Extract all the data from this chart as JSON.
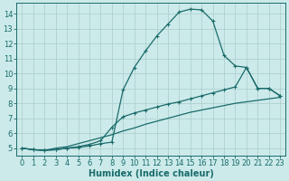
{
  "bg_color": "#cceaea",
  "grid_color": "#b0d0d0",
  "line_color": "#1a6b6b",
  "xlabel": "Humidex (Indice chaleur)",
  "xlabel_fontsize": 7,
  "tick_fontsize": 6,
  "xlim": [
    -0.5,
    23.5
  ],
  "ylim": [
    4.5,
    14.7
  ],
  "yticks": [
    5,
    6,
    7,
    8,
    9,
    10,
    11,
    12,
    13,
    14
  ],
  "xticks": [
    0,
    1,
    2,
    3,
    4,
    5,
    6,
    7,
    8,
    9,
    10,
    11,
    12,
    13,
    14,
    15,
    16,
    17,
    18,
    19,
    20,
    21,
    22,
    23
  ],
  "line1_x": [
    0,
    1,
    2,
    3,
    4,
    5,
    6,
    7,
    8,
    9,
    10,
    11,
    12,
    13,
    14,
    15,
    16,
    17,
    18,
    19,
    20,
    21,
    22,
    23
  ],
  "line1_y": [
    5.0,
    4.9,
    4.85,
    4.9,
    5.0,
    5.05,
    5.15,
    5.3,
    5.4,
    8.9,
    10.4,
    11.5,
    12.5,
    13.3,
    14.1,
    14.3,
    14.25,
    13.5,
    11.2,
    10.5,
    10.4,
    9.0,
    9.0,
    8.5
  ],
  "line2_x": [
    0,
    1,
    2,
    3,
    4,
    5,
    6,
    7,
    8,
    9,
    10,
    11,
    12,
    13,
    14,
    15,
    16,
    17,
    18,
    19,
    20,
    21,
    22,
    23
  ],
  "line2_y": [
    5.0,
    4.9,
    4.85,
    4.9,
    5.0,
    5.1,
    5.25,
    5.5,
    6.4,
    7.1,
    7.35,
    7.55,
    7.75,
    7.95,
    8.1,
    8.3,
    8.5,
    8.7,
    8.9,
    9.1,
    10.4,
    9.0,
    9.0,
    8.5
  ],
  "line3_x": [
    0,
    1,
    2,
    3,
    4,
    5,
    6,
    7,
    8,
    9,
    10,
    11,
    12,
    13,
    14,
    15,
    16,
    17,
    18,
    19,
    20,
    21,
    22,
    23
  ],
  "line3_y": [
    5.0,
    4.9,
    4.85,
    5.0,
    5.1,
    5.3,
    5.5,
    5.7,
    5.9,
    6.15,
    6.35,
    6.6,
    6.8,
    7.0,
    7.2,
    7.4,
    7.55,
    7.7,
    7.85,
    8.0,
    8.1,
    8.2,
    8.3,
    8.4
  ]
}
